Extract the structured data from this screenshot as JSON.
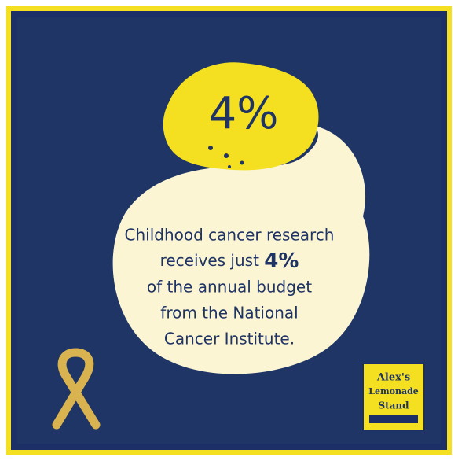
{
  "stat": "4%",
  "body": {
    "line1": "Childhood cancer research",
    "line2_pre": "receives just ",
    "line2_stat": "4%",
    "line3": "of the annual budget",
    "line4": "from the National",
    "line5": "Cancer Institute."
  },
  "logo": {
    "line1": "Alex's",
    "line2": "Lemonade",
    "line3": "Stand"
  }
}
